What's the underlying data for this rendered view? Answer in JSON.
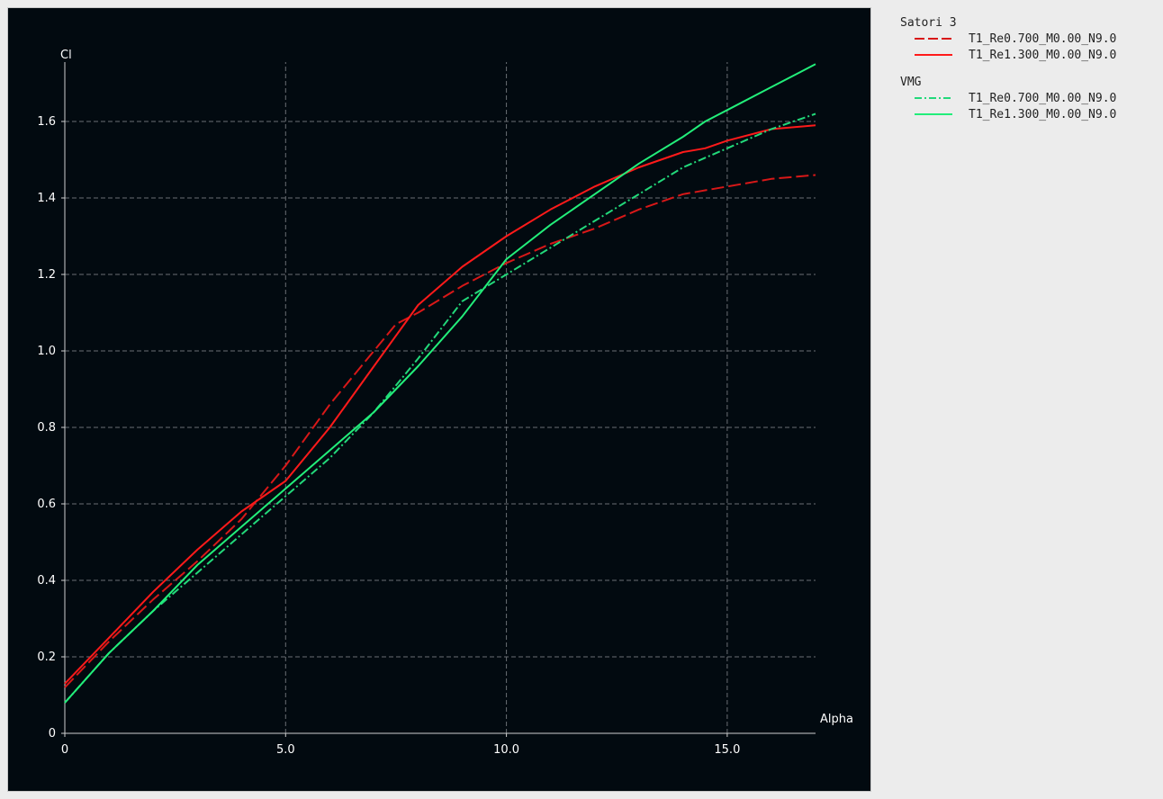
{
  "chart_data": {
    "type": "line",
    "xlabel": "Alpha",
    "ylabel": "Cl",
    "xlim": [
      0,
      17
    ],
    "ylim": [
      0,
      1.75
    ],
    "x_ticks": [
      0,
      5.0,
      10.0,
      15.0
    ],
    "x_tick_labels": [
      "0",
      "5.0",
      "10.0",
      "15.0"
    ],
    "y_ticks": [
      0,
      0.2,
      0.4,
      0.6,
      0.8,
      1.0,
      1.2,
      1.4,
      1.6
    ],
    "y_tick_labels": [
      "0",
      "0.2",
      "0.4",
      "0.6",
      "0.8",
      "1.0",
      "1.2",
      "1.4",
      "1.6"
    ],
    "grid": true,
    "legend_position": "right",
    "groups": [
      {
        "title": "Satori 3",
        "series": [
          {
            "name": "T1_Re0.700_M0.00_N9.0",
            "color": "#d81818",
            "dash": "long-dash",
            "points": [
              [
                0,
                0.12
              ],
              [
                1,
                0.24
              ],
              [
                2,
                0.35
              ],
              [
                3,
                0.45
              ],
              [
                4,
                0.56
              ],
              [
                5,
                0.7
              ],
              [
                6,
                0.86
              ],
              [
                7,
                1.0
              ],
              [
                7.5,
                1.07
              ],
              [
                8,
                1.1
              ],
              [
                9,
                1.17
              ],
              [
                10,
                1.23
              ],
              [
                11,
                1.28
              ],
              [
                12,
                1.32
              ],
              [
                13,
                1.37
              ],
              [
                14,
                1.41
              ],
              [
                15,
                1.43
              ],
              [
                16,
                1.45
              ],
              [
                17,
                1.46
              ]
            ]
          },
          {
            "name": "T1_Re1.300_M0.00_N9.0",
            "color": "#ff1a1a",
            "dash": "solid",
            "points": [
              [
                0,
                0.13
              ],
              [
                1,
                0.25
              ],
              [
                2,
                0.37
              ],
              [
                3,
                0.48
              ],
              [
                4,
                0.58
              ],
              [
                5,
                0.66
              ],
              [
                6,
                0.8
              ],
              [
                7,
                0.96
              ],
              [
                8,
                1.12
              ],
              [
                9,
                1.22
              ],
              [
                10,
                1.3
              ],
              [
                11,
                1.37
              ],
              [
                12,
                1.43
              ],
              [
                13,
                1.48
              ],
              [
                14,
                1.52
              ],
              [
                14.5,
                1.53
              ],
              [
                15,
                1.55
              ],
              [
                16,
                1.58
              ],
              [
                17,
                1.59
              ]
            ]
          }
        ]
      },
      {
        "title": "VMG",
        "series": [
          {
            "name": "T1_Re0.700_M0.00_N9.0",
            "color": "#22d87a",
            "dash": "dash-dot",
            "points": [
              [
                0,
                0.08
              ],
              [
                1,
                0.21
              ],
              [
                2,
                0.32
              ],
              [
                3,
                0.42
              ],
              [
                4,
                0.52
              ],
              [
                5,
                0.62
              ],
              [
                6,
                0.72
              ],
              [
                7,
                0.84
              ],
              [
                8,
                0.98
              ],
              [
                9,
                1.13
              ],
              [
                10,
                1.2
              ],
              [
                11,
                1.27
              ],
              [
                12,
                1.34
              ],
              [
                13,
                1.41
              ],
              [
                14,
                1.48
              ],
              [
                15,
                1.53
              ],
              [
                16,
                1.58
              ],
              [
                17,
                1.62
              ]
            ]
          },
          {
            "name": "T1_Re1.300_M0.00_N9.0",
            "color": "#22ee7a",
            "dash": "solid",
            "points": [
              [
                0,
                0.08
              ],
              [
                1,
                0.21
              ],
              [
                2,
                0.32
              ],
              [
                3,
                0.44
              ],
              [
                4,
                0.54
              ],
              [
                5,
                0.64
              ],
              [
                6,
                0.74
              ],
              [
                7,
                0.84
              ],
              [
                8,
                0.96
              ],
              [
                9,
                1.09
              ],
              [
                10,
                1.24
              ],
              [
                11,
                1.33
              ],
              [
                12,
                1.41
              ],
              [
                13,
                1.49
              ],
              [
                14,
                1.56
              ],
              [
                14.5,
                1.6
              ],
              [
                15,
                1.63
              ],
              [
                16,
                1.69
              ],
              [
                17,
                1.75
              ]
            ]
          }
        ]
      }
    ]
  }
}
